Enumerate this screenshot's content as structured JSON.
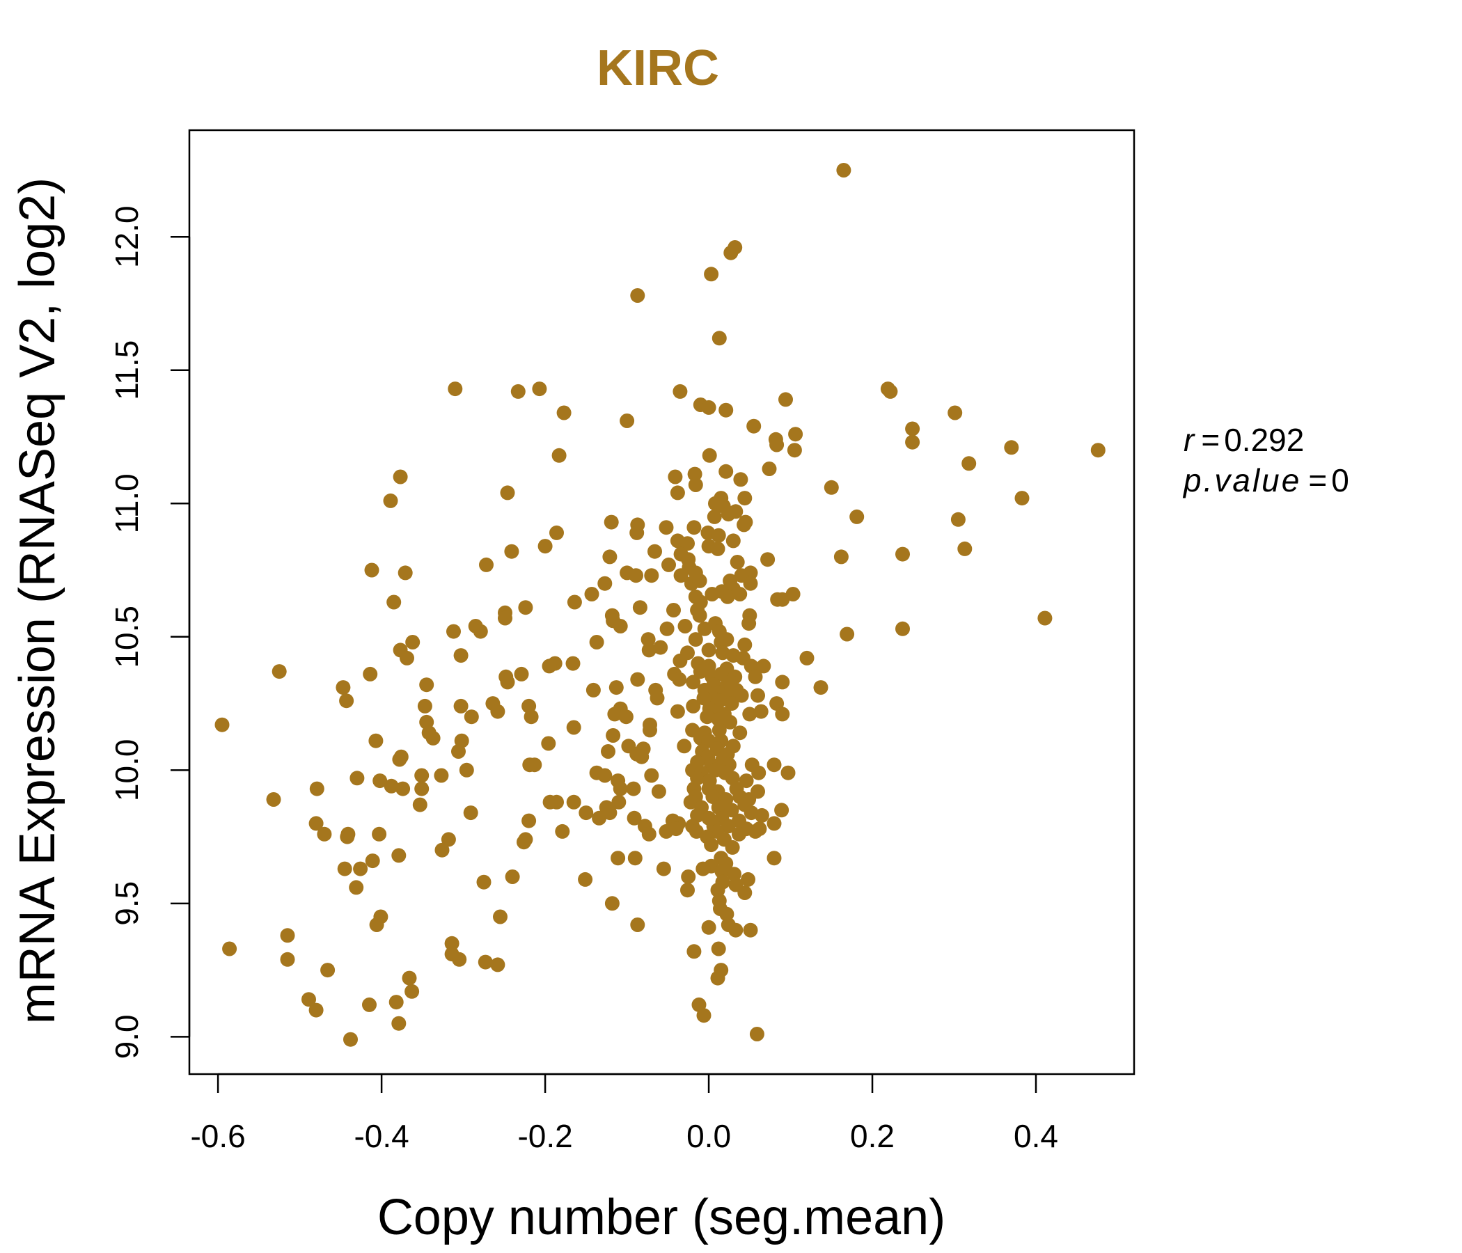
{
  "chart_data": {
    "type": "scatter",
    "title": "KIRC",
    "xlabel": "Copy number (seg.mean)",
    "ylabel": "mRNA Expression (RNASeq V2, log2)",
    "xlim": [
      -0.635,
      0.52
    ],
    "ylim": [
      8.86,
      12.4
    ],
    "x_ticks": [
      -0.6,
      -0.4,
      -0.2,
      0.0,
      0.2,
      0.4
    ],
    "x_tick_labels": [
      "-0.6",
      "-0.4",
      "-0.2",
      "0.0",
      "0.2",
      "0.4"
    ],
    "y_ticks": [
      9.0,
      9.5,
      10.0,
      10.5,
      11.0,
      11.5,
      12.0
    ],
    "y_tick_labels": [
      "9.0",
      "9.5",
      "10.0",
      "10.5",
      "11.0",
      "11.5",
      "12.0"
    ],
    "point_color": "#A5761D",
    "grid": false,
    "annotations": {
      "r_label": "r",
      "r_value": "0.292",
      "p_label": "p.value",
      "p_value": "0"
    },
    "points": [
      [
        0.165,
        12.25
      ],
      [
        0.032,
        11.96
      ],
      [
        0.027,
        11.94
      ],
      [
        0.003,
        11.86
      ],
      [
        -0.087,
        11.78
      ],
      [
        0.013,
        11.62
      ],
      [
        -0.31,
        11.43
      ],
      [
        -0.207,
        11.43
      ],
      [
        -0.233,
        11.42
      ],
      [
        -0.035,
        11.42
      ],
      [
        0.219,
        11.43
      ],
      [
        0.222,
        11.42
      ],
      [
        -0.01,
        11.37
      ],
      [
        0.0,
        11.36
      ],
      [
        0.021,
        11.35
      ],
      [
        0.094,
        11.39
      ],
      [
        -0.177,
        11.34
      ],
      [
        0.301,
        11.34
      ],
      [
        -0.1,
        11.31
      ],
      [
        0.055,
        11.29
      ],
      [
        0.249,
        11.28
      ],
      [
        0.249,
        11.23
      ],
      [
        0.106,
        11.26
      ],
      [
        0.082,
        11.24
      ],
      [
        0.083,
        11.22
      ],
      [
        0.105,
        11.2
      ],
      [
        0.37,
        11.21
      ],
      [
        0.476,
        11.2
      ],
      [
        -0.183,
        11.18
      ],
      [
        0.001,
        11.18
      ],
      [
        0.318,
        11.15
      ],
      [
        0.021,
        11.12
      ],
      [
        0.074,
        11.13
      ],
      [
        -0.377,
        11.1
      ],
      [
        -0.041,
        11.1
      ],
      [
        -0.017,
        11.11
      ],
      [
        0.039,
        11.09
      ],
      [
        -0.016,
        11.07
      ],
      [
        0.15,
        11.06
      ],
      [
        -0.246,
        11.04
      ],
      [
        -0.038,
        11.04
      ],
      [
        0.044,
        11.02
      ],
      [
        0.383,
        11.02
      ],
      [
        -0.389,
        11.01
      ],
      [
        0.008,
        11.0
      ],
      [
        0.015,
        11.02
      ],
      [
        0.018,
        10.99
      ],
      [
        0.033,
        10.97
      ],
      [
        0.007,
        10.95
      ],
      [
        0.024,
        10.96
      ],
      [
        0.045,
        10.93
      ],
      [
        0.043,
        10.92
      ],
      [
        0.181,
        10.95
      ],
      [
        0.305,
        10.94
      ],
      [
        -0.119,
        10.93
      ],
      [
        -0.087,
        10.92
      ],
      [
        -0.052,
        10.91
      ],
      [
        -0.018,
        10.91
      ],
      [
        -0.001,
        10.89
      ],
      [
        0.012,
        10.88
      ],
      [
        0.03,
        10.86
      ],
      [
        -0.088,
        10.89
      ],
      [
        -0.186,
        10.89
      ],
      [
        -0.038,
        10.86
      ],
      [
        -0.026,
        10.85
      ],
      [
        0.0,
        10.84
      ],
      [
        0.011,
        10.83
      ],
      [
        -0.2,
        10.84
      ],
      [
        -0.241,
        10.82
      ],
      [
        -0.066,
        10.82
      ],
      [
        -0.034,
        10.81
      ],
      [
        -0.025,
        10.79
      ],
      [
        0.237,
        10.81
      ],
      [
        0.313,
        10.83
      ],
      [
        0.162,
        10.8
      ],
      [
        0.072,
        10.79
      ],
      [
        -0.121,
        10.8
      ],
      [
        -0.272,
        10.77
      ],
      [
        -0.049,
        10.77
      ],
      [
        -0.024,
        10.76
      ],
      [
        -0.016,
        10.74
      ],
      [
        0.035,
        10.78
      ],
      [
        0.051,
        10.74
      ],
      [
        -0.412,
        10.75
      ],
      [
        -0.371,
        10.74
      ],
      [
        -0.1,
        10.74
      ],
      [
        -0.089,
        10.73
      ],
      [
        -0.07,
        10.73
      ],
      [
        -0.034,
        10.73
      ],
      [
        -0.021,
        10.7
      ],
      [
        -0.011,
        10.71
      ],
      [
        0.026,
        10.71
      ],
      [
        0.04,
        10.73
      ],
      [
        0.051,
        10.7
      ],
      [
        0.03,
        10.68
      ],
      [
        0.016,
        10.67
      ],
      [
        0.004,
        10.66
      ],
      [
        0.023,
        10.65
      ],
      [
        0.038,
        10.66
      ],
      [
        -0.127,
        10.7
      ],
      [
        -0.143,
        10.66
      ],
      [
        -0.016,
        10.65
      ],
      [
        -0.01,
        10.63
      ],
      [
        0.084,
        10.64
      ],
      [
        0.09,
        10.64
      ],
      [
        0.103,
        10.66
      ],
      [
        -0.385,
        10.63
      ],
      [
        -0.164,
        10.63
      ],
      [
        -0.084,
        10.61
      ],
      [
        -0.043,
        10.6
      ],
      [
        -0.014,
        10.6
      ],
      [
        -0.224,
        10.61
      ],
      [
        -0.249,
        10.59
      ],
      [
        -0.249,
        10.57
      ],
      [
        -0.118,
        10.58
      ],
      [
        -0.117,
        10.56
      ],
      [
        -0.108,
        10.54
      ],
      [
        -0.011,
        10.58
      ],
      [
        0.05,
        10.58
      ],
      [
        0.049,
        10.55
      ],
      [
        0.008,
        10.55
      ],
      [
        -0.029,
        10.54
      ],
      [
        -0.005,
        10.53
      ],
      [
        0.013,
        10.52
      ],
      [
        0.411,
        10.57
      ],
      [
        0.237,
        10.53
      ],
      [
        0.169,
        10.51
      ],
      [
        -0.312,
        10.52
      ],
      [
        -0.285,
        10.54
      ],
      [
        -0.279,
        10.52
      ],
      [
        -0.051,
        10.53
      ],
      [
        -0.074,
        10.49
      ],
      [
        -0.016,
        10.49
      ],
      [
        0.015,
        10.48
      ],
      [
        0.022,
        10.49
      ],
      [
        0.044,
        10.47
      ],
      [
        -0.362,
        10.48
      ],
      [
        -0.377,
        10.45
      ],
      [
        -0.137,
        10.48
      ],
      [
        -0.073,
        10.45
      ],
      [
        -0.059,
        10.46
      ],
      [
        -0.026,
        10.44
      ],
      [
        0.0,
        10.45
      ],
      [
        0.017,
        10.44
      ],
      [
        0.03,
        10.43
      ],
      [
        0.042,
        10.42
      ],
      [
        0.12,
        10.42
      ],
      [
        -0.369,
        10.42
      ],
      [
        -0.303,
        10.43
      ],
      [
        -0.188,
        10.4
      ],
      [
        -0.195,
        10.39
      ],
      [
        -0.166,
        10.4
      ],
      [
        -0.035,
        10.41
      ],
      [
        -0.013,
        10.4
      ],
      [
        0.0,
        10.39
      ],
      [
        0.022,
        10.38
      ],
      [
        0.052,
        10.39
      ],
      [
        0.067,
        10.39
      ],
      [
        -0.042,
        10.36
      ],
      [
        -0.036,
        10.34
      ],
      [
        -0.01,
        10.37
      ],
      [
        0.004,
        10.35
      ],
      [
        0.015,
        10.36
      ],
      [
        0.032,
        10.35
      ],
      [
        0.057,
        10.35
      ],
      [
        0.09,
        10.33
      ],
      [
        -0.525,
        10.37
      ],
      [
        -0.414,
        10.36
      ],
      [
        -0.229,
        10.36
      ],
      [
        -0.248,
        10.35
      ],
      [
        -0.246,
        10.33
      ],
      [
        -0.087,
        10.34
      ],
      [
        -0.019,
        10.33
      ],
      [
        0.006,
        10.32
      ],
      [
        0.02,
        10.31
      ],
      [
        0.027,
        10.33
      ],
      [
        0.034,
        10.3
      ],
      [
        0.137,
        10.31
      ],
      [
        -0.447,
        10.31
      ],
      [
        -0.345,
        10.32
      ],
      [
        -0.141,
        10.3
      ],
      [
        -0.113,
        10.31
      ],
      [
        -0.065,
        10.3
      ],
      [
        -0.005,
        10.3
      ],
      [
        0.013,
        10.29
      ],
      [
        0.005,
        10.27
      ],
      [
        0.023,
        10.28
      ],
      [
        0.04,
        10.28
      ],
      [
        0.06,
        10.28
      ],
      [
        -0.443,
        10.26
      ],
      [
        -0.264,
        10.25
      ],
      [
        -0.063,
        10.27
      ],
      [
        -0.006,
        10.27
      ],
      [
        0.013,
        10.26
      ],
      [
        0.028,
        10.25
      ],
      [
        0.083,
        10.25
      ],
      [
        -0.347,
        10.24
      ],
      [
        -0.303,
        10.24
      ],
      [
        -0.22,
        10.24
      ],
      [
        -0.108,
        10.23
      ],
      [
        -0.038,
        10.22
      ],
      [
        -0.019,
        10.24
      ],
      [
        0.001,
        10.23
      ],
      [
        0.011,
        10.22
      ],
      [
        0.019,
        10.21
      ],
      [
        0.05,
        10.21
      ],
      [
        0.064,
        10.22
      ],
      [
        0.09,
        10.21
      ],
      [
        -0.258,
        10.22
      ],
      [
        -0.115,
        10.21
      ],
      [
        -0.101,
        10.2
      ],
      [
        -0.29,
        10.2
      ],
      [
        -0.217,
        10.2
      ],
      [
        -0.002,
        10.2
      ],
      [
        0.012,
        10.19
      ],
      [
        0.026,
        10.18
      ],
      [
        -0.345,
        10.18
      ],
      [
        -0.072,
        10.17
      ],
      [
        -0.595,
        10.17
      ],
      [
        -0.165,
        10.16
      ],
      [
        -0.072,
        10.15
      ],
      [
        -0.02,
        10.15
      ],
      [
        -0.005,
        10.14
      ],
      [
        0.013,
        10.15
      ],
      [
        0.038,
        10.14
      ],
      [
        -0.342,
        10.14
      ],
      [
        -0.337,
        10.12
      ],
      [
        -0.117,
        10.13
      ],
      [
        -0.01,
        10.12
      ],
      [
        0.0,
        10.11
      ],
      [
        0.015,
        10.11
      ],
      [
        -0.407,
        10.11
      ],
      [
        -0.302,
        10.11
      ],
      [
        -0.196,
        10.1
      ],
      [
        -0.098,
        10.09
      ],
      [
        -0.08,
        10.08
      ],
      [
        -0.03,
        10.09
      ],
      [
        -0.008,
        10.07
      ],
      [
        0.01,
        10.08
      ],
      [
        0.023,
        10.06
      ],
      [
        0.03,
        10.09
      ],
      [
        -0.306,
        10.07
      ],
      [
        -0.123,
        10.07
      ],
      [
        -0.088,
        10.06
      ],
      [
        -0.082,
        10.05
      ],
      [
        -0.001,
        10.05
      ],
      [
        0.017,
        10.04
      ],
      [
        -0.376,
        10.05
      ],
      [
        -0.378,
        10.04
      ],
      [
        -0.014,
        10.03
      ],
      [
        0.003,
        10.02
      ],
      [
        0.025,
        10.02
      ],
      [
        0.053,
        10.02
      ],
      [
        0.08,
        10.02
      ],
      [
        -0.219,
        10.02
      ],
      [
        -0.213,
        10.02
      ],
      [
        -0.296,
        10.0
      ],
      [
        -0.02,
        10.0
      ],
      [
        -0.009,
        9.99
      ],
      [
        0.008,
        10.0
      ],
      [
        0.02,
        9.99
      ],
      [
        0.061,
        9.99
      ],
      [
        0.097,
        9.99
      ],
      [
        -0.351,
        9.98
      ],
      [
        -0.327,
        9.98
      ],
      [
        -0.137,
        9.99
      ],
      [
        -0.127,
        9.98
      ],
      [
        -0.07,
        9.98
      ],
      [
        -0.014,
        9.97
      ],
      [
        0.001,
        9.96
      ],
      [
        0.029,
        9.97
      ],
      [
        0.046,
        9.96
      ],
      [
        -0.43,
        9.97
      ],
      [
        -0.111,
        9.96
      ],
      [
        -0.402,
        9.96
      ],
      [
        -0.388,
        9.94
      ],
      [
        -0.374,
        9.93
      ],
      [
        -0.351,
        9.93
      ],
      [
        -0.108,
        9.93
      ],
      [
        -0.092,
        9.93
      ],
      [
        -0.061,
        9.92
      ],
      [
        -0.018,
        9.93
      ],
      [
        0.0,
        9.93
      ],
      [
        0.011,
        9.92
      ],
      [
        0.034,
        9.93
      ],
      [
        0.06,
        9.92
      ],
      [
        -0.479,
        9.93
      ],
      [
        -0.016,
        9.9
      ],
      [
        0.005,
        9.9
      ],
      [
        0.021,
        9.89
      ],
      [
        0.038,
        9.9
      ],
      [
        0.049,
        9.89
      ],
      [
        -0.532,
        9.89
      ],
      [
        -0.186,
        9.88
      ],
      [
        -0.165,
        9.88
      ],
      [
        -0.11,
        9.88
      ],
      [
        -0.194,
        9.88
      ],
      [
        -0.353,
        9.87
      ],
      [
        -0.125,
        9.86
      ],
      [
        -0.022,
        9.88
      ],
      [
        -0.009,
        9.86
      ],
      [
        0.012,
        9.86
      ],
      [
        0.028,
        9.85
      ],
      [
        0.044,
        9.87
      ],
      [
        -0.15,
        9.84
      ],
      [
        -0.121,
        9.84
      ],
      [
        0.052,
        9.84
      ],
      [
        0.065,
        9.83
      ],
      [
        0.089,
        9.85
      ],
      [
        -0.291,
        9.84
      ],
      [
        -0.014,
        9.83
      ],
      [
        0.0,
        9.82
      ],
      [
        0.016,
        9.82
      ],
      [
        0.037,
        9.81
      ],
      [
        -0.134,
        9.82
      ],
      [
        -0.091,
        9.82
      ],
      [
        -0.044,
        9.81
      ],
      [
        -0.22,
        9.81
      ],
      [
        -0.48,
        9.8
      ],
      [
        -0.037,
        9.8
      ],
      [
        -0.02,
        9.79
      ],
      [
        0.006,
        9.79
      ],
      [
        0.024,
        9.79
      ],
      [
        0.046,
        9.78
      ],
      [
        0.08,
        9.8
      ],
      [
        -0.078,
        9.79
      ],
      [
        -0.179,
        9.77
      ],
      [
        -0.052,
        9.77
      ],
      [
        -0.04,
        9.78
      ],
      [
        -0.015,
        9.77
      ],
      [
        0.01,
        9.77
      ],
      [
        0.037,
        9.76
      ],
      [
        0.057,
        9.77
      ],
      [
        0.062,
        9.78
      ],
      [
        -0.47,
        9.76
      ],
      [
        -0.441,
        9.76
      ],
      [
        -0.442,
        9.75
      ],
      [
        -0.403,
        9.76
      ],
      [
        -0.073,
        9.76
      ],
      [
        -0.002,
        9.75
      ],
      [
        0.019,
        9.74
      ],
      [
        -0.318,
        9.74
      ],
      [
        -0.224,
        9.74
      ],
      [
        -0.226,
        9.73
      ],
      [
        0.003,
        9.72
      ],
      [
        0.029,
        9.71
      ],
      [
        -0.326,
        9.7
      ],
      [
        -0.379,
        9.68
      ],
      [
        0.015,
        9.67
      ],
      [
        -0.09,
        9.67
      ],
      [
        -0.111,
        9.67
      ],
      [
        0.08,
        9.67
      ],
      [
        -0.411,
        9.66
      ],
      [
        0.003,
        9.64
      ],
      [
        0.021,
        9.65
      ],
      [
        -0.445,
        9.63
      ],
      [
        -0.426,
        9.63
      ],
      [
        -0.055,
        9.63
      ],
      [
        -0.007,
        9.63
      ],
      [
        0.016,
        9.62
      ],
      [
        0.031,
        9.61
      ],
      [
        -0.24,
        9.6
      ],
      [
        -0.025,
        9.6
      ],
      [
        0.048,
        9.59
      ],
      [
        -0.151,
        9.59
      ],
      [
        -0.275,
        9.58
      ],
      [
        0.017,
        9.58
      ],
      [
        0.033,
        9.57
      ],
      [
        -0.431,
        9.56
      ],
      [
        0.011,
        9.55
      ],
      [
        -0.026,
        9.55
      ],
      [
        0.044,
        9.54
      ],
      [
        0.013,
        9.51
      ],
      [
        -0.118,
        9.5
      ],
      [
        0.014,
        9.48
      ],
      [
        0.022,
        9.46
      ],
      [
        -0.255,
        9.45
      ],
      [
        -0.401,
        9.45
      ],
      [
        -0.406,
        9.42
      ],
      [
        0.024,
        9.42
      ],
      [
        0.033,
        9.4
      ],
      [
        -0.087,
        9.42
      ],
      [
        0.0,
        9.41
      ],
      [
        0.051,
        9.4
      ],
      [
        -0.515,
        9.38
      ],
      [
        -0.314,
        9.35
      ],
      [
        -0.586,
        9.33
      ],
      [
        0.012,
        9.33
      ],
      [
        -0.018,
        9.32
      ],
      [
        -0.314,
        9.31
      ],
      [
        -0.305,
        9.29
      ],
      [
        -0.515,
        9.29
      ],
      [
        -0.273,
        9.28
      ],
      [
        -0.258,
        9.27
      ],
      [
        -0.466,
        9.25
      ],
      [
        0.015,
        9.25
      ],
      [
        0.011,
        9.22
      ],
      [
        -0.366,
        9.22
      ],
      [
        -0.363,
        9.17
      ],
      [
        -0.489,
        9.14
      ],
      [
        -0.012,
        9.12
      ],
      [
        -0.415,
        9.12
      ],
      [
        -0.382,
        9.13
      ],
      [
        -0.48,
        9.1
      ],
      [
        -0.006,
        9.08
      ],
      [
        -0.379,
        9.05
      ],
      [
        0.059,
        9.01
      ],
      [
        -0.438,
        8.99
      ]
    ]
  }
}
